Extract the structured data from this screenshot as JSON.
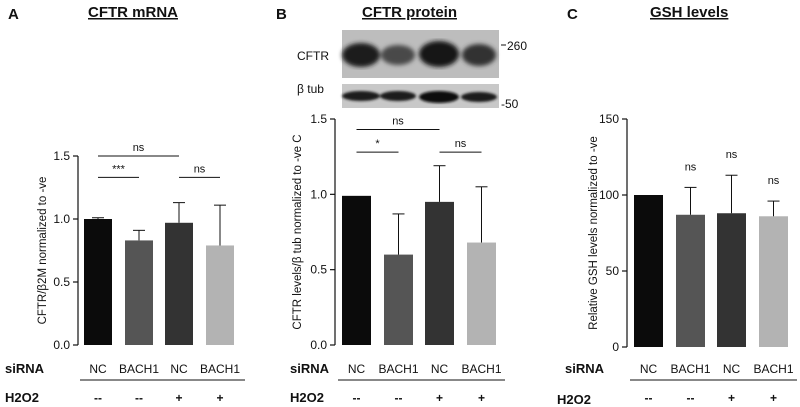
{
  "colors": {
    "bar_colors": [
      "#0b0b0b",
      "#555555",
      "#333333",
      "#b3b3b3"
    ],
    "axis": "#111111"
  },
  "row_labels": {
    "sirna": "siRNA",
    "h2o2": "H2O2"
  },
  "panels": [
    {
      "letter": "A",
      "title": "CFTR mRNA"
    },
    {
      "letter": "B",
      "title": "CFTR protein"
    },
    {
      "letter": "C",
      "title": "GSH levels"
    }
  ],
  "blot": {
    "cftr_label": "CFTR",
    "tub_label": "β tub",
    "marker_top": "260",
    "marker_bottom": "-50"
  },
  "chart_data": [
    {
      "type": "bar",
      "title": "CFTR mRNA",
      "ylabel": "CFTR/β2M normalized to -ve",
      "ylim": [
        0,
        1.5
      ],
      "yticks": [
        "0.0",
        "0.5",
        "1.0",
        "1.5"
      ],
      "categories": [
        "NC",
        "BACH1",
        "NC",
        "BACH1"
      ],
      "h2o2": [
        "--",
        "--",
        "+",
        "+"
      ],
      "values": [
        1.0,
        0.83,
        0.97,
        0.79
      ],
      "errors": [
        0.01,
        0.08,
        0.16,
        0.32
      ],
      "significance": [
        {
          "from": 0,
          "to": 1,
          "label": "***",
          "y": 1.33
        },
        {
          "from": 0,
          "to": 2,
          "label": "ns",
          "y": 1.5
        },
        {
          "from": 2,
          "to": 3,
          "label": "ns",
          "y": 1.33
        }
      ]
    },
    {
      "type": "bar",
      "title": "CFTR protein",
      "ylabel": "CFTR levels/β tub normalized to -ve C",
      "ylim": [
        0,
        1.5
      ],
      "yticks": [
        "0.0",
        "0.5",
        "1.0",
        "1.5"
      ],
      "categories": [
        "NC",
        "BACH1",
        "NC",
        "BACH1"
      ],
      "h2o2": [
        "--",
        "--",
        "+",
        "+"
      ],
      "values": [
        0.99,
        0.6,
        0.95,
        0.68
      ],
      "errors": [
        0.0,
        0.27,
        0.24,
        0.37
      ],
      "significance": [
        {
          "from": 0,
          "to": 1,
          "label": "*",
          "y": 1.28
        },
        {
          "from": 0,
          "to": 2,
          "label": "ns",
          "y": 1.43
        },
        {
          "from": 2,
          "to": 3,
          "label": "ns",
          "y": 1.28
        }
      ]
    },
    {
      "type": "bar",
      "title": "GSH levels",
      "ylabel": "Relative GSH levels normalized to -ve",
      "ylim": [
        0,
        150
      ],
      "yticks": [
        "0",
        "50",
        "100",
        "150"
      ],
      "categories": [
        "NC",
        "BACH1",
        "NC",
        "BACH1"
      ],
      "h2o2": [
        "--",
        "--",
        "+",
        "+"
      ],
      "values": [
        100,
        87,
        88,
        86
      ],
      "errors": [
        0,
        18,
        25,
        10
      ],
      "bar_labels": [
        "",
        "ns",
        "ns",
        "ns"
      ]
    }
  ]
}
